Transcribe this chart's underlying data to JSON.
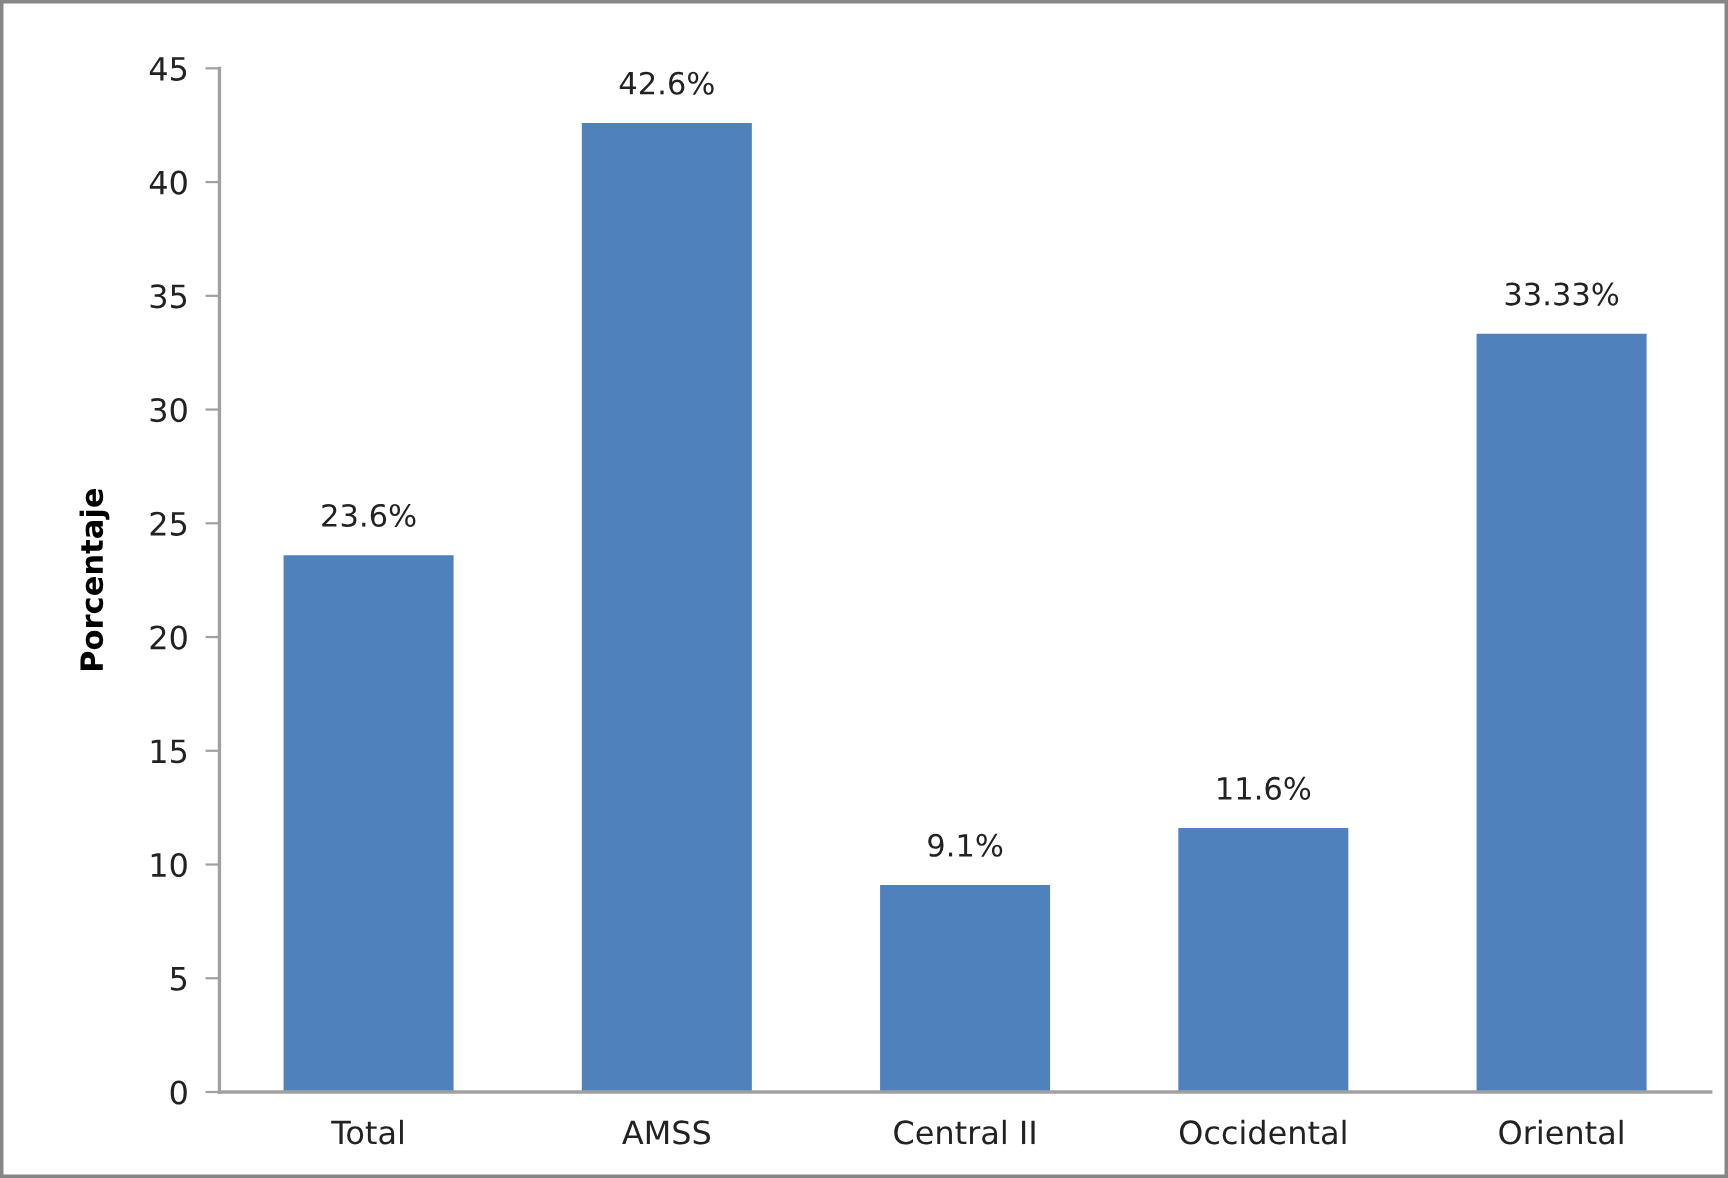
{
  "chart_data": {
    "type": "bar",
    "ylabel": "Porcentaje",
    "categories": [
      "Total",
      "AMSS",
      "Central II",
      "Occidental",
      "Oriental"
    ],
    "values": [
      23.6,
      42.6,
      9.1,
      11.6,
      33.33
    ],
    "value_labels": [
      "23.6%",
      "42.6%",
      "9.1%",
      "11.6%",
      "33.33%"
    ],
    "color": "#4f81bd",
    "ylim": [
      0,
      45
    ],
    "yticks": [
      0,
      5,
      10,
      15,
      20,
      25,
      30,
      35,
      40,
      45
    ],
    "grid": false,
    "legend": false
  }
}
